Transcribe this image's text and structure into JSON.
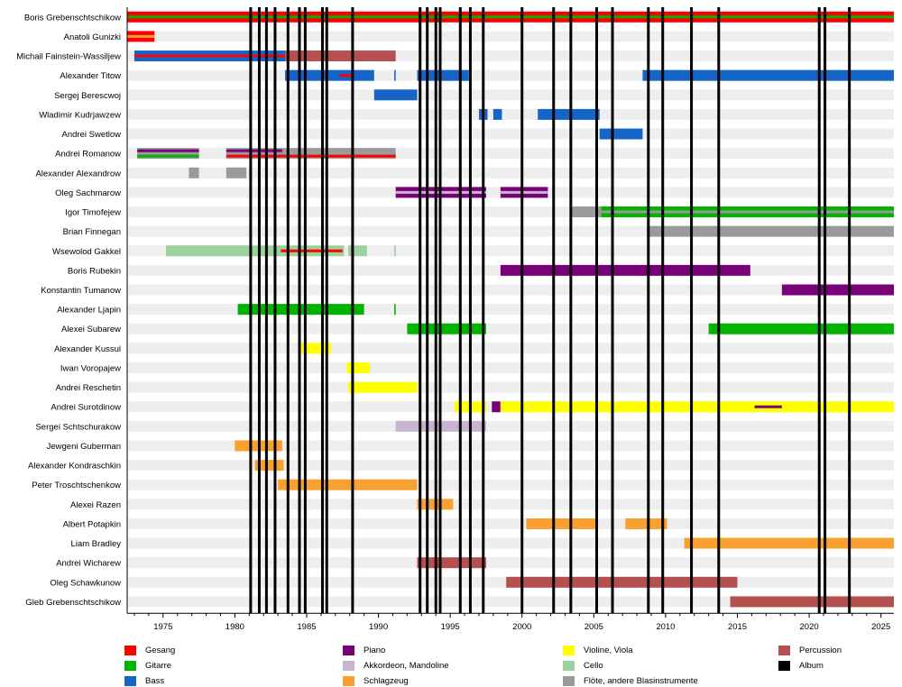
{
  "chart_data": {
    "type": "timeline",
    "title": "",
    "xlabel": "",
    "ylabel": "",
    "xlim": [
      1972.5,
      2025.9
    ],
    "x_ticks": [
      1975,
      1980,
      1985,
      1990,
      1995,
      2000,
      2005,
      2010,
      2015,
      2020,
      2025
    ],
    "instruments": {
      "gesang": {
        "label": "Gesang",
        "color": "#ff0000"
      },
      "gitarre": {
        "label": "Gitarre",
        "color": "#00b400"
      },
      "bass": {
        "label": "Bass",
        "color": "#1565c8"
      },
      "piano": {
        "label": "Piano",
        "color": "#780078"
      },
      "akkordeon": {
        "label": "Akkordeon, Mandoline",
        "color": "#c8b4d0"
      },
      "schlagzeug": {
        "label": "Schlagzeug",
        "color": "#f8a030"
      },
      "violine": {
        "label": "Violine, Viola",
        "color": "#ffff00"
      },
      "cello": {
        "label": "Cello",
        "color": "#9cd09c"
      },
      "floete": {
        "label": "Flöte, andere Blasinstrumente",
        "color": "#9a9a9a"
      },
      "percussion": {
        "label": "Percussion",
        "color": "#b45050"
      },
      "album": {
        "label": "Album",
        "color": "#000000"
      }
    },
    "legend_columns": [
      [
        "gesang",
        "gitarre",
        "bass"
      ],
      [
        "piano",
        "akkordeon",
        "schlagzeug"
      ],
      [
        "violine",
        "cello",
        "floete"
      ],
      [
        "percussion",
        "album"
      ]
    ],
    "albums": [
      1981.1,
      1981.7,
      1982.2,
      1982.8,
      1983.7,
      1984.5,
      1984.9,
      1986.1,
      1986.4,
      1988.2,
      1992.9,
      1993.4,
      1994.0,
      1994.3,
      1995.7,
      1996.4,
      1997.3,
      2000.0,
      2002.2,
      2003.4,
      2005.2,
      2006.3,
      2008.8,
      2009.8,
      2011.8,
      2013.7,
      2020.7,
      2021.1,
      2022.8
    ],
    "members": [
      {
        "name": "Boris Grebenschtschikow",
        "bars": [
          {
            "instrument": "gesang",
            "start": 1972.5,
            "end": 2025.9
          },
          {
            "instrument": "gitarre",
            "start": 1972.5,
            "end": 2025.9,
            "thin": true
          }
        ]
      },
      {
        "name": "Anatoli Gunizki",
        "bars": [
          {
            "instrument": "gesang",
            "start": 1972.5,
            "end": 1974.4
          },
          {
            "instrument": "schlagzeug",
            "start": 1972.5,
            "end": 1974.4,
            "thin": true
          }
        ]
      },
      {
        "name": "Michail Fainstein-Wassiljew",
        "bars": [
          {
            "instrument": "bass",
            "start": 1973.0,
            "end": 1983.5
          },
          {
            "instrument": "gesang",
            "start": 1973.0,
            "end": 1983.5,
            "thin": true
          },
          {
            "instrument": "percussion",
            "start": 1983.5,
            "end": 1991.2
          }
        ]
      },
      {
        "name": "Alexander Titow",
        "bars": [
          {
            "instrument": "bass",
            "start": 1983.5,
            "end": 1989.7
          },
          {
            "instrument": "gesang",
            "start": 1987.3,
            "end": 1988.1,
            "thin": true
          },
          {
            "instrument": "bass",
            "start": 1991.1,
            "end": 1991.2
          },
          {
            "instrument": "bass",
            "start": 1992.7,
            "end": 1996.3
          },
          {
            "instrument": "bass",
            "start": 2008.4,
            "end": 2025.9
          }
        ]
      },
      {
        "name": "Sergej Berescwoj",
        "bars": [
          {
            "instrument": "bass",
            "start": 1989.7,
            "end": 1992.7
          }
        ]
      },
      {
        "name": "Wladimir Kudrjawzew",
        "bars": [
          {
            "instrument": "bass",
            "start": 1997.0,
            "end": 1997.6
          },
          {
            "instrument": "bass",
            "start": 1998.0,
            "end": 1998.6
          },
          {
            "instrument": "bass",
            "start": 2001.1,
            "end": 2005.4
          }
        ]
      },
      {
        "name": "Andrei Swetlow",
        "bars": [
          {
            "instrument": "bass",
            "start": 2005.4,
            "end": 2008.4
          }
        ]
      },
      {
        "name": "Andrei Romanow",
        "bars": [
          {
            "instrument": "floete",
            "start": 1973.2,
            "end": 1977.5
          },
          {
            "instrument": "piano",
            "start": 1973.2,
            "end": 1977.5,
            "thin": true,
            "offset": -1
          },
          {
            "instrument": "gitarre",
            "start": 1973.2,
            "end": 1977.5,
            "thin": true,
            "offset": 1
          },
          {
            "instrument": "floete",
            "start": 1979.4,
            "end": 1991.2
          },
          {
            "instrument": "piano",
            "start": 1979.4,
            "end": 1983.3,
            "thin": true,
            "offset": -1
          },
          {
            "instrument": "gesang",
            "start": 1979.4,
            "end": 1991.2,
            "thin": true,
            "offset": 1
          }
        ]
      },
      {
        "name": "Alexander Alexandrow",
        "bars": [
          {
            "instrument": "floete",
            "start": 1976.8,
            "end": 1977.5
          },
          {
            "instrument": "floete",
            "start": 1979.4,
            "end": 1980.8
          }
        ]
      },
      {
        "name": "Oleg Sachmarow",
        "bars": [
          {
            "instrument": "piano",
            "start": 1991.2,
            "end": 1997.5
          },
          {
            "instrument": "akkordeon",
            "start": 1991.2,
            "end": 1997.5,
            "thin": true
          },
          {
            "instrument": "piano",
            "start": 1998.5,
            "end": 2001.8
          },
          {
            "instrument": "akkordeon",
            "start": 1998.5,
            "end": 2001.8,
            "thin": true
          }
        ]
      },
      {
        "name": "Igor Timofejew",
        "bars": [
          {
            "instrument": "floete",
            "start": 2003.4,
            "end": 2005.5
          },
          {
            "instrument": "gitarre",
            "start": 2005.5,
            "end": 2025.9
          },
          {
            "instrument": "floete",
            "start": 2005.5,
            "end": 2025.9,
            "thin": true
          }
        ]
      },
      {
        "name": "Brian Finnegan",
        "bars": [
          {
            "instrument": "floete",
            "start": 2008.7,
            "end": 2025.9
          }
        ]
      },
      {
        "name": "Wsewolod Gakkel",
        "bars": [
          {
            "instrument": "cello",
            "start": 1975.2,
            "end": 1987.6
          },
          {
            "instrument": "gesang",
            "start": 1983.2,
            "end": 1987.5,
            "thin": true
          },
          {
            "instrument": "cello",
            "start": 1987.9,
            "end": 1989.2
          },
          {
            "instrument": "cello",
            "start": 1991.1,
            "end": 1991.2
          }
        ]
      },
      {
        "name": "Boris Rubekin",
        "bars": [
          {
            "instrument": "piano",
            "start": 1998.5,
            "end": 2015.9
          }
        ]
      },
      {
        "name": "Konstantin Tumanow",
        "bars": [
          {
            "instrument": "piano",
            "start": 2018.1,
            "end": 2025.9
          }
        ]
      },
      {
        "name": "Alexander Ljapin",
        "bars": [
          {
            "instrument": "gitarre",
            "start": 1980.2,
            "end": 1989.0
          },
          {
            "instrument": "gitarre",
            "start": 1991.1,
            "end": 1991.2
          }
        ]
      },
      {
        "name": "Alexei Subarew",
        "bars": [
          {
            "instrument": "gitarre",
            "start": 1992.0,
            "end": 1997.5
          },
          {
            "instrument": "gitarre",
            "start": 2013.0,
            "end": 2025.9
          }
        ]
      },
      {
        "name": "Alexander Kussul",
        "bars": [
          {
            "instrument": "violine",
            "start": 1984.4,
            "end": 1986.7
          }
        ]
      },
      {
        "name": "Iwan Voropajew",
        "bars": [
          {
            "instrument": "violine",
            "start": 1987.8,
            "end": 1989.4
          }
        ]
      },
      {
        "name": "Andrei Reschetin",
        "bars": [
          {
            "instrument": "violine",
            "start": 1987.9,
            "end": 1992.7
          }
        ]
      },
      {
        "name": "Andrei Surotdinow",
        "bars": [
          {
            "instrument": "violine",
            "start": 1995.3,
            "end": 1997.5
          },
          {
            "instrument": "piano",
            "start": 1997.9,
            "end": 1998.5
          },
          {
            "instrument": "violine",
            "start": 1998.5,
            "end": 2025.9
          },
          {
            "instrument": "piano",
            "start": 2016.2,
            "end": 2018.1,
            "thin": true
          }
        ]
      },
      {
        "name": "Sergei Schtschurakow",
        "bars": [
          {
            "instrument": "akkordeon",
            "start": 1991.2,
            "end": 1997.5
          }
        ]
      },
      {
        "name": "Jewgeni Guberman",
        "bars": [
          {
            "instrument": "schlagzeug",
            "start": 1980.0,
            "end": 1983.3
          }
        ]
      },
      {
        "name": "Alexander Kondraschkin",
        "bars": [
          {
            "instrument": "schlagzeug",
            "start": 1981.4,
            "end": 1983.4
          }
        ]
      },
      {
        "name": "Peter Troschtschenkow",
        "bars": [
          {
            "instrument": "schlagzeug",
            "start": 1983.0,
            "end": 1992.7
          }
        ]
      },
      {
        "name": "Alexei Razen",
        "bars": [
          {
            "instrument": "schlagzeug",
            "start": 1992.7,
            "end": 1995.2
          }
        ]
      },
      {
        "name": "Albert Potapkin",
        "bars": [
          {
            "instrument": "schlagzeug",
            "start": 2000.3,
            "end": 2005.1
          },
          {
            "instrument": "schlagzeug",
            "start": 2007.2,
            "end": 2010.1
          }
        ]
      },
      {
        "name": "Liam Bradley",
        "bars": [
          {
            "instrument": "schlagzeug",
            "start": 2011.3,
            "end": 2025.9
          }
        ]
      },
      {
        "name": "Andrei Wicharew",
        "bars": [
          {
            "instrument": "percussion",
            "start": 1992.7,
            "end": 1997.5
          }
        ]
      },
      {
        "name": "Oleg Schawkunow",
        "bars": [
          {
            "instrument": "percussion",
            "start": 1998.9,
            "end": 2015.0
          }
        ]
      },
      {
        "name": "Gleb Grebenschtschikow",
        "bars": [
          {
            "instrument": "percussion",
            "start": 2014.5,
            "end": 2025.9
          }
        ]
      }
    ]
  }
}
